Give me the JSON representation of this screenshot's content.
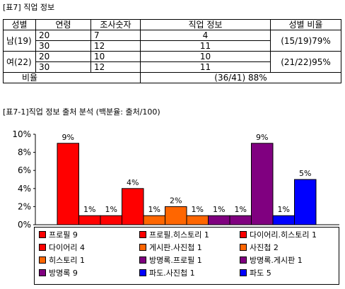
{
  "table_caption": "[표7] 직업 정보",
  "table": {
    "headers": [
      "성별",
      "연령",
      "조사숫자",
      "직업 정보",
      "성별 비율"
    ],
    "rows": [
      {
        "gender": "남(19)",
        "entries": [
          [
            "20",
            "7",
            "4"
          ],
          [
            "30",
            "12",
            "11"
          ]
        ],
        "ratio": "(15/19)79%"
      },
      {
        "gender": "여(22)",
        "entries": [
          [
            "20",
            "10",
            "10"
          ],
          [
            "30",
            "12",
            "11"
          ]
        ],
        "ratio": "(21/22)95%"
      }
    ],
    "footer_label": "비율",
    "footer_value": "(36/41) 88%"
  },
  "chart_caption": "[표7-1]직업 정보 출처 분석 (백분율: 출처/100)",
  "chart_data": {
    "type": "bar",
    "categories": [
      "프로필 9",
      "프로필.히스토리 1",
      "다이어리.히스토리 1",
      "다이어리 4",
      "게시판.사진첩 1",
      "사진첩 2",
      "히스토리 1",
      "방명록.프로필 1",
      "방명록.게시판 1",
      "방명록 9",
      "파도.사진첩 1",
      "파도 5"
    ],
    "values": [
      9,
      1,
      1,
      4,
      1,
      2,
      1,
      1,
      1,
      9,
      1,
      5
    ],
    "data_labels": [
      "9%",
      "1%",
      "1%",
      "4%",
      "1%",
      "2%",
      "1%",
      "1%",
      "1%",
      "9%",
      "1%",
      "5%"
    ],
    "colors": [
      "#ff0000",
      "#ff0000",
      "#ff0000",
      "#ff0000",
      "#ff6600",
      "#ff6600",
      "#ff6600",
      "#800080",
      "#800080",
      "#800080",
      "#0000ff",
      "#0000ff"
    ],
    "y_ticks": [
      "0%",
      "2%",
      "4%",
      "6%",
      "8%",
      "10%"
    ],
    "ylim": [
      0,
      10
    ],
    "grid": false,
    "legend_position": "bottom"
  }
}
